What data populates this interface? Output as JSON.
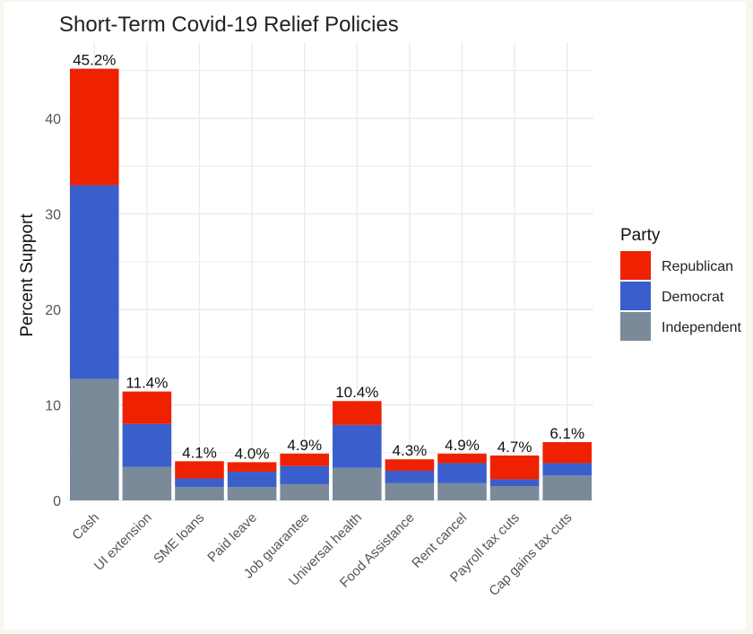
{
  "chart_data": {
    "type": "bar",
    "stacked": true,
    "title": "Short-Term Covid-19 Relief Policies",
    "xlabel": "",
    "ylabel": "Percent Support",
    "ylim": [
      0,
      47
    ],
    "yticks": [
      0,
      10,
      20,
      30,
      40
    ],
    "grid": true,
    "legend_position": "right",
    "legend_title": "Party",
    "categories": [
      "Cash",
      "UI extension",
      "SME loans",
      "Paid leave",
      "Job guarantee",
      "Universal health",
      "Food Assistance",
      "Rent cancel",
      "Payroll tax cuts",
      "Cap gains tax cuts"
    ],
    "totals_labels": [
      "45.2%",
      "11.4%",
      "4.1%",
      "4.0%",
      "4.9%",
      "10.4%",
      "4.3%",
      "4.9%",
      "4.7%",
      "6.1%"
    ],
    "series": [
      {
        "name": "Independent",
        "color": "#7a8a99",
        "values": [
          12.7,
          3.5,
          1.4,
          1.4,
          1.7,
          3.4,
          1.8,
          1.8,
          1.5,
          2.6
        ]
      },
      {
        "name": "Democrat",
        "color": "#3a5fcd",
        "values": [
          20.3,
          4.5,
          0.9,
          1.6,
          1.9,
          4.5,
          1.3,
          2.1,
          0.7,
          1.3
        ]
      },
      {
        "name": "Republican",
        "color": "#ee2200",
        "values": [
          12.2,
          3.4,
          1.8,
          1.0,
          1.3,
          2.5,
          1.2,
          1.0,
          2.5,
          2.2
        ]
      }
    ],
    "legend_order": [
      "Republican",
      "Democrat",
      "Independent"
    ]
  }
}
